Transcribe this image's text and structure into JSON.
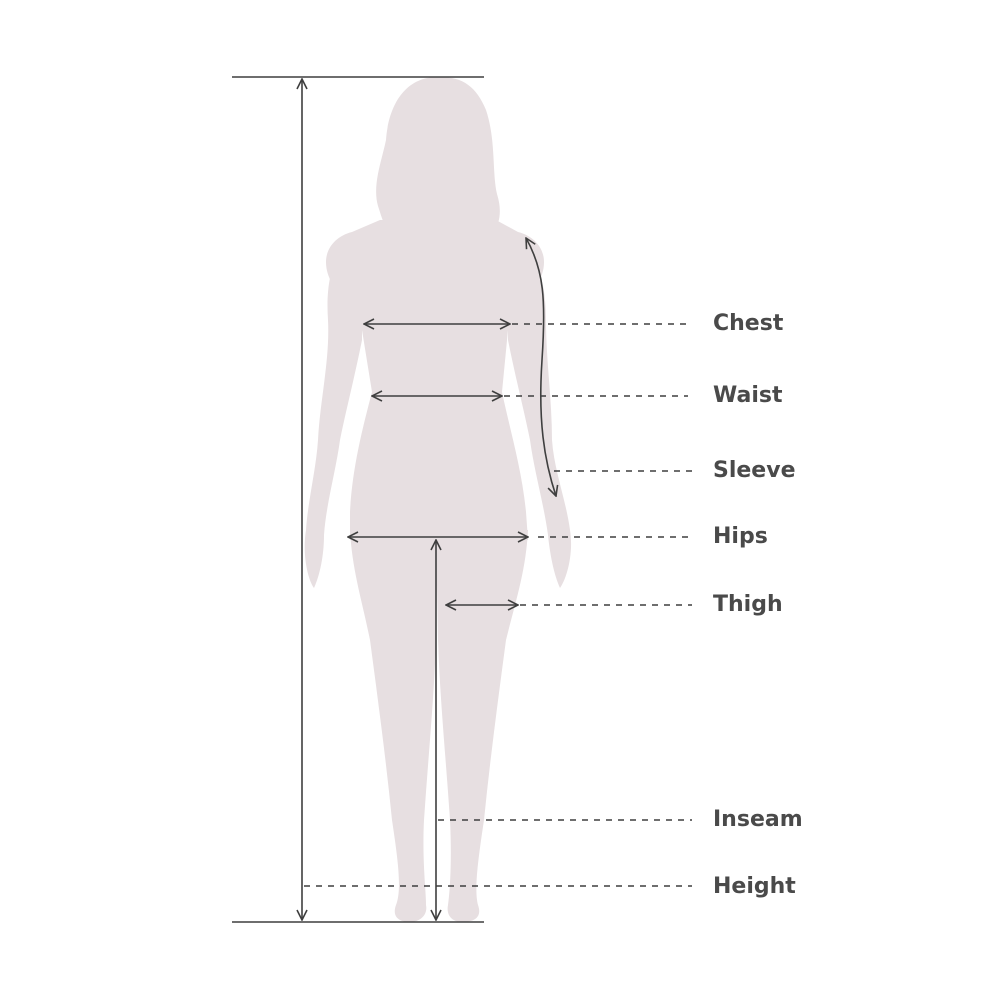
{
  "colors": {
    "silhouette": "#e7dfe1",
    "line": "#3f3f3f",
    "text": "#4a4a4a"
  },
  "labels": {
    "chest": "Chest",
    "waist": "Waist",
    "sleeve": "Sleeve",
    "hips": "Hips",
    "thigh": "Thigh",
    "inseam": "Inseam",
    "height": "Height"
  }
}
